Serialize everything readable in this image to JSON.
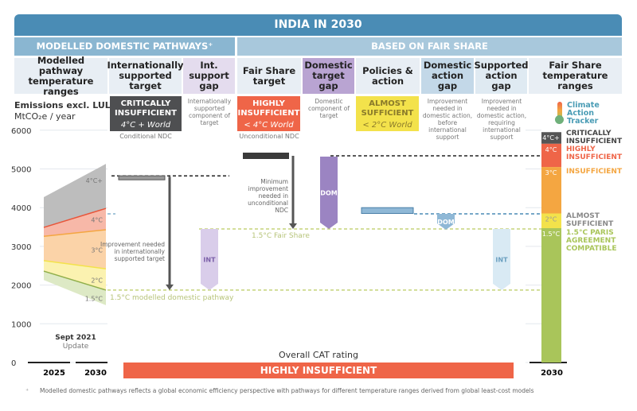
{
  "header": {
    "title": "INDIA IN 2030",
    "left_section": "MODELLED DOMESTIC PATHWAYS⁺",
    "right_section": "BASED ON FAIR SHARE"
  },
  "columns": [
    "Modelled pathway temperature ranges",
    "Internationally supported target",
    "Int. support gap",
    "Fair Share target",
    "Domestic target gap",
    "Policies & action",
    "Domestic action gap",
    "Supported action gap",
    "Fair Share temperature ranges"
  ],
  "y_label": "Emissions excl. LULUCF",
  "y_unit": "MtCO₂e / year",
  "badges": {
    "intl": {
      "rating": "CRITICALLY INSUFFICIENT",
      "world": "4°C + World",
      "note": "Conditional NDC"
    },
    "fair": {
      "rating": "HIGHLY INSUFFICIENT",
      "world": "< 4°C World",
      "note": "Unconditional NDC"
    },
    "policy": {
      "rating": "ALMOST SUFFICIENT",
      "world": "< 2°C World"
    }
  },
  "notes": {
    "int_gap": "Internationally supported component of target",
    "dom_gap": "Domestic component of target",
    "dom_action": "Improvement needed in domestic action, before international support",
    "sup_action": "Improvement needed in domestic action, requiring international support",
    "improve_intl": "Improvement needed in internationally supported target",
    "min_improve": "Minimum improvement needed in unconditional NDC",
    "mdp": "1.5°C modelled domestic pathway",
    "fs": "1.5°C Fair Share"
  },
  "logo": "Climate Action Tracker",
  "update": {
    "date": "Sept 2021",
    "label": "Update"
  },
  "overall": {
    "label": "Overall CAT rating",
    "rating": "HIGHLY INSUFFICIENT"
  },
  "footnote_mark": "⁺",
  "footnote": "Modelled domestic pathways reflects a global economic efficiency perspective with pathways for different temperature ranges derived from global least-cost models",
  "legend": [
    {
      "temp": "4°C+",
      "label": "CRITICALLY INSUFFICIENT",
      "color": "#555555"
    },
    {
      "temp": "4°C",
      "label": "HIGHLY INSUFFICIENT",
      "color": "#ef6548"
    },
    {
      "temp": "3°C",
      "label": "INSUFFICIENT",
      "color": "#f4a641"
    },
    {
      "temp": "2°C",
      "label": "ALMOST SUFFICIENT",
      "color": "#f3e24b"
    },
    {
      "temp": "1.5°C",
      "label": "1.5°C PARIS AGREEMENT COMPATIBLE",
      "color": "#a9c55a"
    }
  ],
  "chart_data": {
    "type": "area",
    "ylim": [
      0,
      6000
    ],
    "yticks": [
      "0",
      "1000",
      "2000",
      "3000",
      "4000",
      "5000",
      "6000"
    ],
    "x_left": [
      "2025",
      "2030"
    ],
    "x_right": "2030",
    "fan_bounds_2025": [
      4270,
      3490,
      3260,
      2630,
      2360,
      2130
    ],
    "fan_bounds_2030": [
      5130,
      3980,
      3430,
      2420,
      1870,
      1480
    ],
    "fan_labels": [
      "4°C+",
      "4°C",
      "3°C",
      "2°C",
      "1.5°C"
    ],
    "conditional_ndc": 4760,
    "unconditional_ndc": 5380,
    "policies_range": [
      3850,
      4000
    ],
    "mdp_1_5": 1870,
    "fair_share_1_5": 3450,
    "fair_share_bounds": [
      5950,
      5650,
      5050,
      3850,
      3470,
      0
    ],
    "gap_labels": {
      "int": "INT",
      "dom": "DOM"
    }
  }
}
